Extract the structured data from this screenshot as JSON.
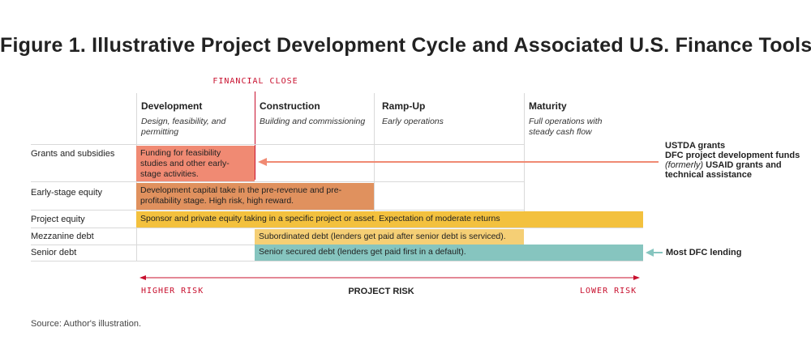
{
  "title": "Figure 1. Illustrative Project Development Cycle and Associated U.S. Finance Tools",
  "financial_close": "FINANCIAL CLOSE",
  "stages": [
    {
      "name": "Development",
      "desc_line1": "Design, feasibility, and",
      "desc_line2": "permitting"
    },
    {
      "name": "Construction",
      "desc_line1": "Building and commissioning",
      "desc_line2": ""
    },
    {
      "name": "Ramp-Up",
      "desc_line1": "Early operations",
      "desc_line2": ""
    },
    {
      "name": "Maturity",
      "desc_line1": "Full operations with",
      "desc_line2": "steady cash flow"
    }
  ],
  "rows": [
    {
      "label": "Grants and subsidies",
      "bar_line1": "Funding for feasibility",
      "bar_line2": "studies and other early-",
      "bar_line3": "stage activities."
    },
    {
      "label": "Early-stage equity",
      "bar_line1": "Development capital take in the pre-revenue and pre-",
      "bar_line2": "profitability stage. High risk, high reward."
    },
    {
      "label": "Project equity",
      "bar_line1": "Sponsor and private equity taking in a specific project or asset. Expectation of moderate returns"
    },
    {
      "label": "Mezzanine debt",
      "bar_line1": "Subordinated debt (lenders get paid after senior debt is serviced)."
    },
    {
      "label": "Senior debt",
      "bar_line1": "Senior secured debt (lenders get paid first in a default)."
    }
  ],
  "grants_note": {
    "line1": "USTDA grants",
    "line2": "DFC project development funds",
    "line3_prefix": "(formerly)",
    "line3_rest": " USAID grants and",
    "line4": "technical assistance"
  },
  "senior_note": "Most DFC lending",
  "risk": {
    "left": "HIGHER RISK",
    "center": "PROJECT RISK",
    "right": "LOWER RISK"
  },
  "source": "Source: Author's illustration.",
  "colors": {
    "accent_red": "#c8102e",
    "grants": "#f08a73",
    "early_equity": "#e0915e",
    "project_equity": "#f3c13e",
    "mezzanine": "#f5cf75",
    "senior": "#86c5bf",
    "grants_arrow": "#f08a73",
    "senior_arrow": "#86c5bf"
  }
}
